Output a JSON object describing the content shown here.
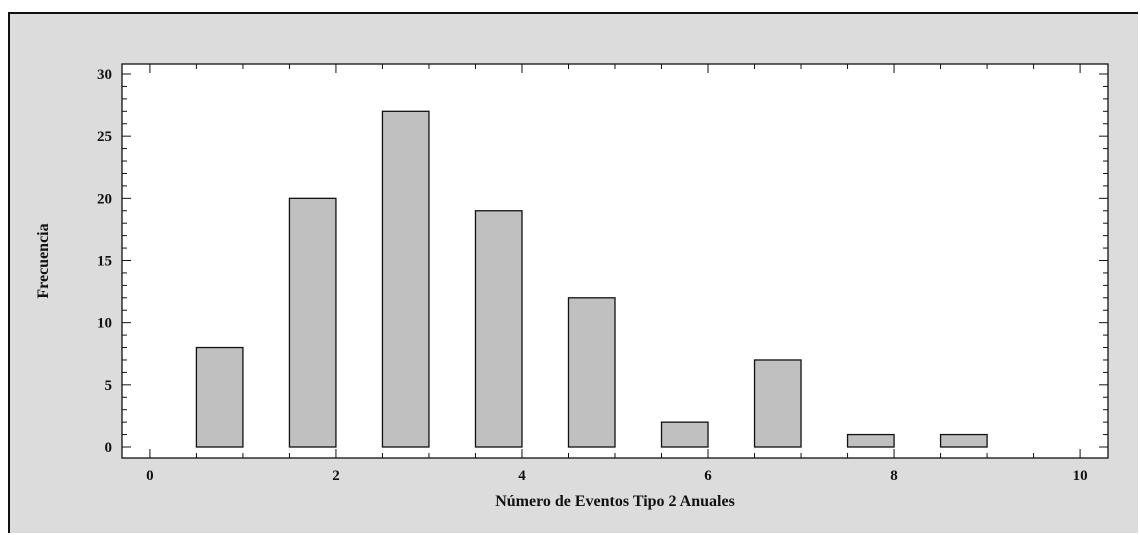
{
  "chart_data": {
    "type": "bar",
    "title": "",
    "xlabel": "Número de Eventos Tipo 2 Anuales",
    "ylabel": "Frecuencia",
    "xlim": [
      0,
      10
    ],
    "ylim": [
      0,
      30
    ],
    "x_ticks": [
      0,
      2,
      4,
      6,
      8,
      10
    ],
    "y_ticks": [
      0,
      5,
      10,
      15,
      20,
      25,
      30
    ],
    "bins": [
      {
        "x_start": 0.5,
        "x_end": 1.0,
        "value": 8
      },
      {
        "x_start": 1.5,
        "x_end": 2.0,
        "value": 20
      },
      {
        "x_start": 2.5,
        "x_end": 3.0,
        "value": 27
      },
      {
        "x_start": 3.5,
        "x_end": 4.0,
        "value": 19
      },
      {
        "x_start": 4.5,
        "x_end": 5.0,
        "value": 12
      },
      {
        "x_start": 5.5,
        "x_end": 6.0,
        "value": 2
      },
      {
        "x_start": 6.5,
        "x_end": 7.0,
        "value": 7
      },
      {
        "x_start": 7.5,
        "x_end": 8.0,
        "value": 1
      },
      {
        "x_start": 8.5,
        "x_end": 9.0,
        "value": 1
      }
    ],
    "grid": false,
    "bar_color": "#c0c0c0",
    "background_color": "#dcdcdc",
    "plot_background_color": "#ffffff"
  }
}
